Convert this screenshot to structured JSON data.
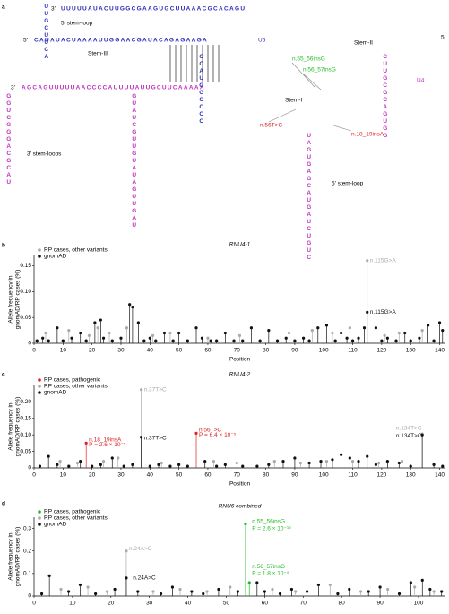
{
  "panel_labels": [
    "a",
    "b",
    "c",
    "d"
  ],
  "diagram": {
    "strands": [
      {
        "text": "UUUUUAUACUUGGCGAAGUGCUUAAACGCACAGU",
        "color": "#2b2bb8"
      },
      {
        "text": "CAUAUACUAAAAUUGGAACGAUACAGAGAAGA",
        "color": "#2b2bb8"
      },
      {
        "text": "AGCAGUUUUUAACCCCAUUUUAUUGCUUCAAAAA",
        "color": "#c030c0"
      },
      {
        "text": "UUGCUUCA",
        "color": "#2b2bb8"
      },
      {
        "text": "GGUCGGGACGCAU",
        "color": "#c030c0"
      },
      {
        "text": "GUAUCGUUGUAUAGUUGAU",
        "color": "#c030c0"
      },
      {
        "text": "UAGUGAGCAUGAUCUGUC",
        "color": "#c030c0"
      },
      {
        "text": "GCAUGGCCCC",
        "color": "#2b2bb8"
      },
      {
        "text": "CUUGCGCAGUGG",
        "color": "#c030c0"
      }
    ],
    "labels": [
      {
        "text": "3′",
        "color": "#000"
      },
      {
        "text": "5′",
        "color": "#000"
      },
      {
        "text": "3′",
        "color": "#000"
      },
      {
        "text": "5′",
        "color": "#000"
      },
      {
        "text": "5′ stem-loop",
        "color": "#000"
      },
      {
        "text": "Stem-III",
        "color": "#000"
      },
      {
        "text": "Stem-II",
        "color": "#000"
      },
      {
        "text": "Stem-I",
        "color": "#000"
      },
      {
        "text": "U6",
        "color": "#2b2bb8"
      },
      {
        "text": "U4",
        "color": "#c030c0"
      },
      {
        "text": "3′ stem-loops",
        "color": "#000"
      },
      {
        "text": "5′ stem-loop",
        "color": "#000"
      },
      {
        "text": "n.55_56insG",
        "color": "#22bb22"
      },
      {
        "text": "n.56_57insG",
        "color": "#22bb22"
      },
      {
        "text": "n.56T>C",
        "color": "#dd2222"
      },
      {
        "text": "n.18_19insA",
        "color": "#dd2222"
      }
    ]
  },
  "chart_data": [
    {
      "type": "lollipop",
      "title": "RNU4-1",
      "xlabel": "Position",
      "ylabel": [
        "Allele frequency in",
        "gnomAD/RP cases (%)"
      ],
      "xlim": [
        0,
        142
      ],
      "xticks": [
        0,
        10,
        20,
        30,
        40,
        50,
        60,
        70,
        80,
        90,
        100,
        110,
        120,
        130,
        140
      ],
      "ylim": [
        0,
        0.17
      ],
      "yticks": [
        0,
        0.05,
        {
          "value": 0.1,
          "label": "0.10"
        },
        0.15
      ],
      "legend": "top-left",
      "series": [
        {
          "name": "RP cases, other variants",
          "color": "#aaaaaa",
          "x": [
            4,
            12,
            19,
            22,
            26,
            32,
            41,
            47,
            60,
            71,
            88,
            96,
            103,
            109,
            115,
            121,
            126,
            134
          ],
          "values": [
            0.02,
            0.025,
            0.015,
            0.03,
            0.02,
            0.03,
            0.015,
            0.02,
            0.01,
            0.015,
            0.02,
            0.025,
            0.02,
            0.03,
            0.16,
            0.015,
            0.02,
            0.025
          ]
        },
        {
          "name": "gnomAD",
          "color": "#111111",
          "x": [
            1,
            3,
            5,
            8,
            10,
            13,
            16,
            18,
            21,
            23,
            24,
            27,
            30,
            33,
            34,
            36,
            38,
            40,
            42,
            45,
            48,
            50,
            53,
            56,
            58,
            61,
            63,
            66,
            69,
            72,
            75,
            78,
            81,
            84,
            87,
            90,
            93,
            95,
            98,
            101,
            104,
            106,
            108,
            110,
            112,
            114,
            115,
            118,
            120,
            122,
            125,
            128,
            130,
            133,
            136,
            138,
            140,
            141
          ],
          "values": [
            0.005,
            0.01,
            0.005,
            0.03,
            0.005,
            0.01,
            0.02,
            0.005,
            0.04,
            0.045,
            0.01,
            0.005,
            0.01,
            0.075,
            0.07,
            0.04,
            0.005,
            0.01,
            0.005,
            0.02,
            0.005,
            0.02,
            0.005,
            0.03,
            0.01,
            0.005,
            0.005,
            0.02,
            0.005,
            0.005,
            0.03,
            0.005,
            0.025,
            0.005,
            0.01,
            0.005,
            0.01,
            0.005,
            0.03,
            0.035,
            0.005,
            0.02,
            0.01,
            0.005,
            0.01,
            0.03,
            0.06,
            0.03,
            0.005,
            0.01,
            0.005,
            0.02,
            0.005,
            0.01,
            0.035,
            0.005,
            0.04,
            0.025
          ]
        }
      ],
      "annotations": [
        {
          "text": "n.115G>A",
          "x": 115,
          "y": 0.16,
          "color": "#aaaaaa"
        },
        {
          "text": "n.115G>A",
          "x": 115,
          "y": 0.06,
          "color": "#111111"
        }
      ]
    },
    {
      "type": "lollipop",
      "title": "RNU4-2",
      "xlabel": "Position",
      "ylabel": [
        "Allele frequency in",
        "gnomAD/RP cases (%)"
      ],
      "xlim": [
        0,
        142
      ],
      "xticks": [
        0,
        10,
        20,
        30,
        40,
        50,
        60,
        70,
        80,
        90,
        100,
        110,
        120,
        130,
        140
      ],
      "ylim": [
        0,
        0.25
      ],
      "yticks": [
        0,
        0.05,
        {
          "value": 0.1,
          "label": "0.10"
        },
        0.15,
        {
          "value": 0.2,
          "label": "0.20"
        }
      ],
      "legend": "top-left",
      "series": [
        {
          "name": "RP cases, pathogenic",
          "color": "#dd2222",
          "x": [
            18,
            56
          ],
          "values": [
            0.075,
            0.105
          ]
        },
        {
          "name": "RP cases, other variants",
          "color": "#aaaaaa",
          "x": [
            9,
            15,
            24,
            29,
            37,
            44,
            62,
            70,
            83,
            92,
            101,
            110,
            119,
            127,
            134
          ],
          "values": [
            0.02,
            0.015,
            0.02,
            0.03,
            0.237,
            0.015,
            0.02,
            0.015,
            0.02,
            0.015,
            0.02,
            0.02,
            0.015,
            0.02,
            0.103
          ]
        },
        {
          "name": "gnomAD",
          "color": "#111111",
          "x": [
            2,
            5,
            8,
            12,
            16,
            20,
            23,
            27,
            31,
            34,
            37,
            40,
            43,
            47,
            50,
            53,
            59,
            63,
            66,
            72,
            77,
            81,
            86,
            90,
            95,
            99,
            103,
            106,
            109,
            112,
            115,
            118,
            122,
            126,
            130,
            134,
            138,
            141
          ],
          "values": [
            0.005,
            0.035,
            0.01,
            0.005,
            0.02,
            0.005,
            0.01,
            0.03,
            0.005,
            0.01,
            0.093,
            0.005,
            0.01,
            0.005,
            0.01,
            0.005,
            0.02,
            0.005,
            0.01,
            0.005,
            0.005,
            0.01,
            0.02,
            0.03,
            0.015,
            0.02,
            0.025,
            0.04,
            0.03,
            0.02,
            0.035,
            0.01,
            0.02,
            0.015,
            0.005,
            0.1,
            0.01,
            0.005
          ]
        }
      ],
      "annotations": [
        {
          "text": "n.18_19insA",
          "x": 18,
          "y": 0.085,
          "color": "#dd2222"
        },
        {
          "text": "P = 2.6 × 10⁻⁵",
          "x": 18,
          "y": 0.07,
          "color": "#dd2222"
        },
        {
          "text": "n.56T>C",
          "x": 56,
          "y": 0.115,
          "color": "#dd2222"
        },
        {
          "text": "P = 6.4 × 10⁻⁵",
          "x": 56,
          "y": 0.1,
          "color": "#dd2222"
        },
        {
          "text": "n.37T>C",
          "x": 37,
          "y": 0.237,
          "color": "#aaaaaa"
        },
        {
          "text": "n.37T>C",
          "x": 37,
          "y": 0.09,
          "color": "#111111"
        },
        {
          "text": "n.134T>C",
          "x": 124,
          "y": 0.12,
          "color": "#aaaaaa"
        },
        {
          "text": "n.134T>C",
          "x": 124,
          "y": 0.097,
          "color": "#111111"
        }
      ]
    },
    {
      "type": "lollipop",
      "title": "RNU6 combined",
      "ylabel": [
        "Allele frequency in",
        "gnomAD/RP cases (%)"
      ],
      "xlim": [
        0,
        107
      ],
      "xticks": [
        0,
        10,
        20,
        30,
        40,
        50,
        60,
        70,
        80,
        90,
        100
      ],
      "ylim": [
        0,
        0.35
      ],
      "yticks": [
        0,
        0.1,
        0.2,
        0.3
      ],
      "legend": "top-left",
      "series": [
        {
          "name": "RP cases, pathogenic",
          "color": "#22bb22",
          "x": [
            55,
            56
          ],
          "values": [
            0.32,
            0.06
          ]
        },
        {
          "name": "RP cases, other variants",
          "color": "#aaaaaa",
          "x": [
            7,
            14,
            19,
            24,
            31,
            38,
            45,
            51,
            62,
            68,
            77,
            85,
            92,
            99,
            104
          ],
          "values": [
            0.03,
            0.04,
            0.02,
            0.2,
            0.02,
            0.03,
            0.02,
            0.04,
            0.03,
            0.02,
            0.05,
            0.02,
            0.03,
            0.04,
            0.02
          ]
        },
        {
          "name": "gnomAD",
          "color": "#111111",
          "x": [
            2,
            4,
            9,
            12,
            16,
            21,
            24,
            27,
            33,
            36,
            41,
            44,
            48,
            53,
            58,
            60,
            64,
            67,
            71,
            74,
            79,
            82,
            87,
            90,
            95,
            98,
            101,
            103,
            106
          ],
          "values": [
            0.01,
            0.09,
            0.02,
            0.05,
            0.01,
            0.03,
            0.08,
            0.02,
            0.01,
            0.04,
            0.02,
            0.01,
            0.03,
            0.02,
            0.06,
            0.02,
            0.01,
            0.03,
            0.02,
            0.05,
            0.01,
            0.03,
            0.02,
            0.04,
            0.01,
            0.06,
            0.07,
            0.03,
            0.02
          ]
        }
      ],
      "annotations": [
        {
          "text": "n.55_56insG",
          "x": 56,
          "y": 0.33,
          "color": "#22bb22"
        },
        {
          "text": "P = 2.6 × 10⁻¹⁹",
          "x": 56,
          "y": 0.3,
          "color": "#22bb22"
        },
        {
          "text": "n.56_57insG",
          "x": 56,
          "y": 0.13,
          "color": "#22bb22"
        },
        {
          "text": "P = 1.8 × 10⁻⁵",
          "x": 56,
          "y": 0.1,
          "color": "#22bb22"
        },
        {
          "text": "n.24A>C",
          "x": 24,
          "y": 0.21,
          "color": "#aaaaaa"
        },
        {
          "text": "n.24A>C",
          "x": 25,
          "y": 0.08,
          "color": "#111111"
        }
      ]
    }
  ]
}
